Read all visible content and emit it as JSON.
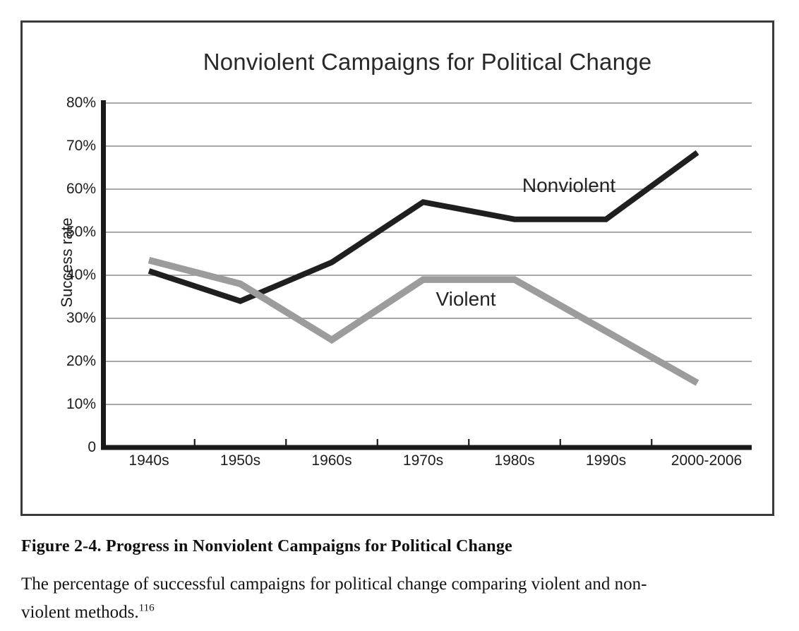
{
  "chart_data": {
    "type": "line",
    "title": "Nonviolent Campaigns for Political Change",
    "ylabel": "Success rate",
    "xlabel": "",
    "categories": [
      "1940s",
      "1950s",
      "1960s",
      "1970s",
      "1980s",
      "1990s",
      "2000-2006"
    ],
    "series": [
      {
        "name": "Nonviolent",
        "color": "#1f1f1f",
        "stroke_width": 8,
        "values": [
          41,
          34,
          43,
          57,
          53,
          53,
          68.5
        ]
      },
      {
        "name": "Violent",
        "color": "#9c9c9c",
        "stroke_width": 9.5,
        "values": [
          43.5,
          38,
          25,
          39,
          39,
          27,
          15
        ]
      }
    ],
    "y_ticks": [
      {
        "label": "0",
        "value": 0
      },
      {
        "label": "10%",
        "value": 10
      },
      {
        "label": "20%",
        "value": 20
      },
      {
        "label": "30%",
        "value": 30
      },
      {
        "label": "40%",
        "value": 40
      },
      {
        "label": "50%",
        "value": 50
      },
      {
        "label": "60%",
        "value": 60
      },
      {
        "label": "70%",
        "value": 70
      },
      {
        "label": "80%",
        "value": 80
      }
    ],
    "ylim": [
      0,
      80
    ],
    "grid": "horizontal",
    "legend": "inline-labels",
    "annotations": [
      {
        "text": "Nonviolent",
        "series": "Nonviolent"
      },
      {
        "text": "Violent",
        "series": "Violent"
      }
    ]
  },
  "caption": {
    "heading": "Figure 2-4. Progress in Nonviolent Campaigns for Political Change",
    "body_lines": [
      "The percentage of successful campaigns for political change comparing violent and non-",
      "violent methods."
    ],
    "footnote_marker": "116"
  },
  "colors": {
    "nonviolent_line": "#1f1f1f",
    "violent_line": "#9c9c9c",
    "gridline": "#8c8c8c",
    "axis": "#1a1a1a",
    "panel_border": "#3a3a3a",
    "text": "#1c1c1c",
    "background": "#ffffff"
  }
}
